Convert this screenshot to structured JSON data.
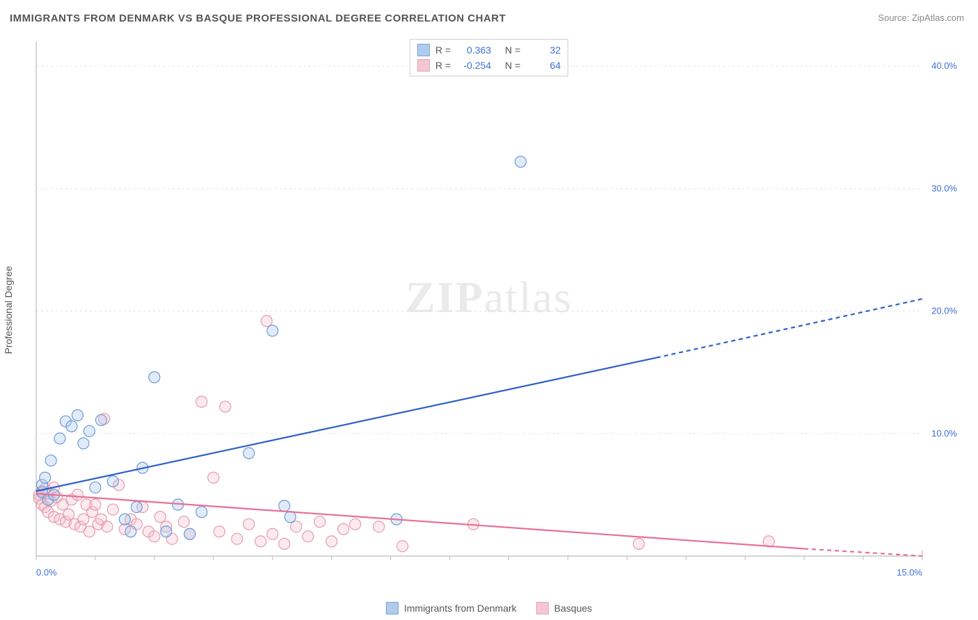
{
  "title": "IMMIGRANTS FROM DENMARK VS BASQUE PROFESSIONAL DEGREE CORRELATION CHART",
  "source_label": "Source:",
  "source_name": "ZipAtlas.com",
  "ylabel": "Professional Degree",
  "watermark": "ZIPatlas",
  "chart": {
    "type": "scatter",
    "background_color": "#ffffff",
    "grid_color": "#e1e1e1",
    "axis_color": "#bcbcbc",
    "tick_label_color": "#3b6fd8",
    "label_color": "#555555",
    "title_fontsize": 15,
    "label_fontsize": 14,
    "tick_fontsize": 13,
    "xlim": [
      0,
      15
    ],
    "ylim": [
      0,
      42
    ],
    "x_ticks_minor_step": 1,
    "x_tick_labels": [
      {
        "x": 0,
        "label": "0.0%"
      },
      {
        "x": 15,
        "label": "15.0%"
      }
    ],
    "y_gridlines": [
      10,
      20,
      30,
      40
    ],
    "y_tick_labels": [
      {
        "y": 10,
        "label": "10.0%"
      },
      {
        "y": 20,
        "label": "20.0%"
      },
      {
        "y": 30,
        "label": "30.0%"
      },
      {
        "y": 40,
        "label": "40.0%"
      }
    ],
    "marker_radius": 8,
    "marker_stroke_width": 1.2,
    "marker_fill_opacity": 0.35,
    "trend_line_width": 2.2,
    "trend_dash_pattern": "6,5",
    "series": [
      {
        "id": "denmark",
        "label": "Immigrants from Denmark",
        "color_stroke": "#6a9ad8",
        "color_fill": "#a9c6ea",
        "trend_color": "#2e5fc9",
        "R": "0.363",
        "N": "32",
        "trend": {
          "x1": 0,
          "y1": 5.3,
          "x2": 10.5,
          "y2": 16.2,
          "x2_ext": 15,
          "y2_ext": 21.0
        },
        "points": [
          [
            0.1,
            5.2
          ],
          [
            0.1,
            5.8
          ],
          [
            0.15,
            6.4
          ],
          [
            0.2,
            4.6
          ],
          [
            0.25,
            7.8
          ],
          [
            0.3,
            5.0
          ],
          [
            0.4,
            9.6
          ],
          [
            0.5,
            11.0
          ],
          [
            0.6,
            10.6
          ],
          [
            0.7,
            11.5
          ],
          [
            0.8,
            9.2
          ],
          [
            0.9,
            10.2
          ],
          [
            1.0,
            5.6
          ],
          [
            1.1,
            11.1
          ],
          [
            1.3,
            6.1
          ],
          [
            1.5,
            3.0
          ],
          [
            1.6,
            2.0
          ],
          [
            1.7,
            4.0
          ],
          [
            1.8,
            7.2
          ],
          [
            2.0,
            14.6
          ],
          [
            2.2,
            2.0
          ],
          [
            2.4,
            4.2
          ],
          [
            2.6,
            1.8
          ],
          [
            2.8,
            3.6
          ],
          [
            3.6,
            8.4
          ],
          [
            4.0,
            18.4
          ],
          [
            4.2,
            4.1
          ],
          [
            4.3,
            3.2
          ],
          [
            6.1,
            3.0
          ],
          [
            8.2,
            32.2
          ]
        ]
      },
      {
        "id": "basques",
        "label": "Basques",
        "color_stroke": "#e89aad",
        "color_fill": "#f3c2cf",
        "trend_color": "#e86f93",
        "R": "-0.254",
        "N": "64",
        "trend": {
          "x1": 0,
          "y1": 5.1,
          "x2": 13.0,
          "y2": 0.6,
          "x2_ext": 15,
          "y2_ext": 0.0
        },
        "points": [
          [
            0.05,
            5.0
          ],
          [
            0.05,
            4.7
          ],
          [
            0.1,
            5.3
          ],
          [
            0.1,
            4.2
          ],
          [
            0.15,
            5.5
          ],
          [
            0.15,
            4.0
          ],
          [
            0.2,
            5.1
          ],
          [
            0.2,
            3.6
          ],
          [
            0.25,
            4.5
          ],
          [
            0.3,
            5.6
          ],
          [
            0.3,
            3.2
          ],
          [
            0.35,
            4.8
          ],
          [
            0.4,
            3.0
          ],
          [
            0.45,
            4.2
          ],
          [
            0.5,
            2.8
          ],
          [
            0.55,
            3.4
          ],
          [
            0.6,
            4.6
          ],
          [
            0.65,
            2.6
          ],
          [
            0.7,
            5.0
          ],
          [
            0.75,
            2.4
          ],
          [
            0.8,
            3.0
          ],
          [
            0.85,
            4.2
          ],
          [
            0.9,
            2.0
          ],
          [
            0.95,
            3.6
          ],
          [
            1.0,
            4.2
          ],
          [
            1.05,
            2.6
          ],
          [
            1.1,
            3.0
          ],
          [
            1.15,
            11.2
          ],
          [
            1.2,
            2.4
          ],
          [
            1.3,
            3.8
          ],
          [
            1.4,
            5.8
          ],
          [
            1.5,
            2.2
          ],
          [
            1.6,
            3.0
          ],
          [
            1.7,
            2.6
          ],
          [
            1.8,
            4.0
          ],
          [
            1.9,
            2.0
          ],
          [
            2.0,
            1.6
          ],
          [
            2.1,
            3.2
          ],
          [
            2.2,
            2.4
          ],
          [
            2.3,
            1.4
          ],
          [
            2.5,
            2.8
          ],
          [
            2.6,
            1.8
          ],
          [
            2.8,
            12.6
          ],
          [
            3.0,
            6.4
          ],
          [
            3.1,
            2.0
          ],
          [
            3.2,
            12.2
          ],
          [
            3.4,
            1.4
          ],
          [
            3.6,
            2.6
          ],
          [
            3.8,
            1.2
          ],
          [
            3.9,
            19.2
          ],
          [
            4.0,
            1.8
          ],
          [
            4.2,
            1.0
          ],
          [
            4.4,
            2.4
          ],
          [
            4.6,
            1.6
          ],
          [
            4.8,
            2.8
          ],
          [
            5.0,
            1.2
          ],
          [
            5.2,
            2.2
          ],
          [
            5.4,
            2.6
          ],
          [
            5.8,
            2.4
          ],
          [
            6.2,
            0.8
          ],
          [
            7.4,
            2.6
          ],
          [
            10.2,
            1.0
          ],
          [
            12.4,
            1.2
          ]
        ]
      }
    ]
  },
  "legend_top": {
    "r_label": "R =",
    "n_label": "N ="
  }
}
